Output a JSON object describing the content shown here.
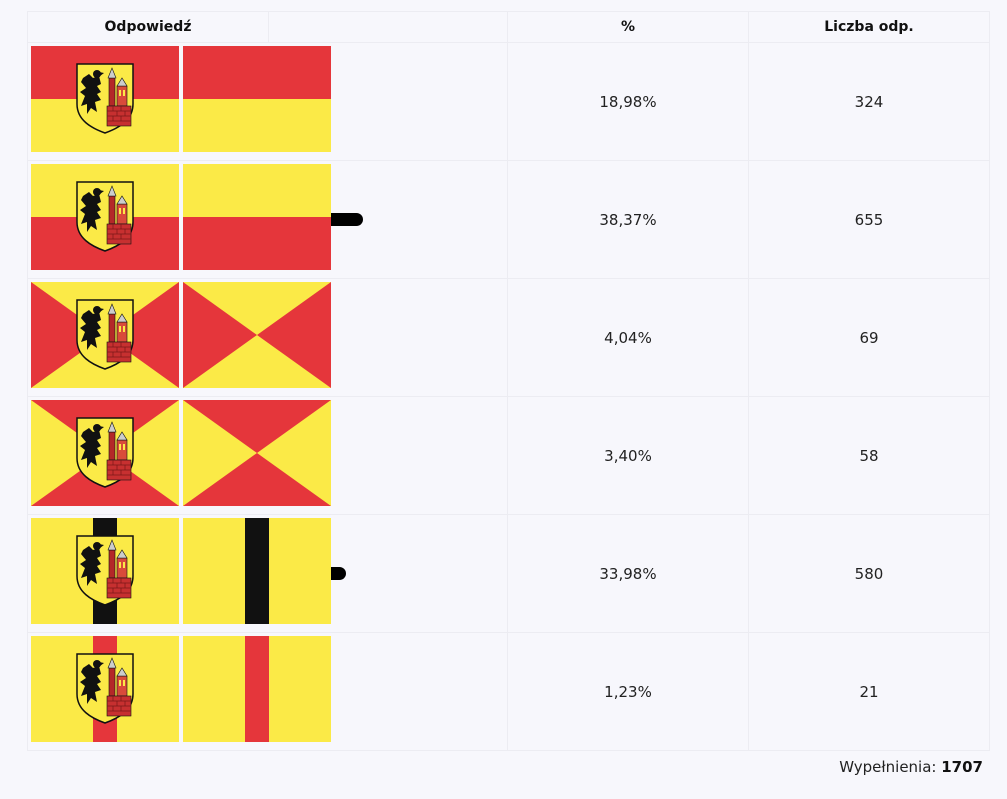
{
  "table": {
    "headers": {
      "answer": "Odpowiedź",
      "percent": "%",
      "count": "Liczba odp."
    },
    "rows": [
      {
        "variant": "horizontal-red-top",
        "percent": "18,98%",
        "count": "324",
        "share": 0.1898
      },
      {
        "variant": "horizontal-yellow-top",
        "percent": "38,37%",
        "count": "655",
        "share": 0.3837
      },
      {
        "variant": "saltire-red-sides",
        "percent": "4,04%",
        "count": "69",
        "share": 0.0404
      },
      {
        "variant": "saltire-red-topbottom",
        "percent": "3,40%",
        "count": "58",
        "share": 0.034
      },
      {
        "variant": "vertical-black-stripe",
        "percent": "33,98%",
        "count": "580",
        "share": 0.3398
      },
      {
        "variant": "vertical-red-stripe",
        "percent": "1,23%",
        "count": "21",
        "share": 0.0123
      }
    ]
  },
  "footer": {
    "label": "Wypełnienia:",
    "total": "1707"
  },
  "colors": {
    "red": "#e5363b",
    "yellow": "#fbea47",
    "black": "#111111",
    "bar": "#000000"
  }
}
